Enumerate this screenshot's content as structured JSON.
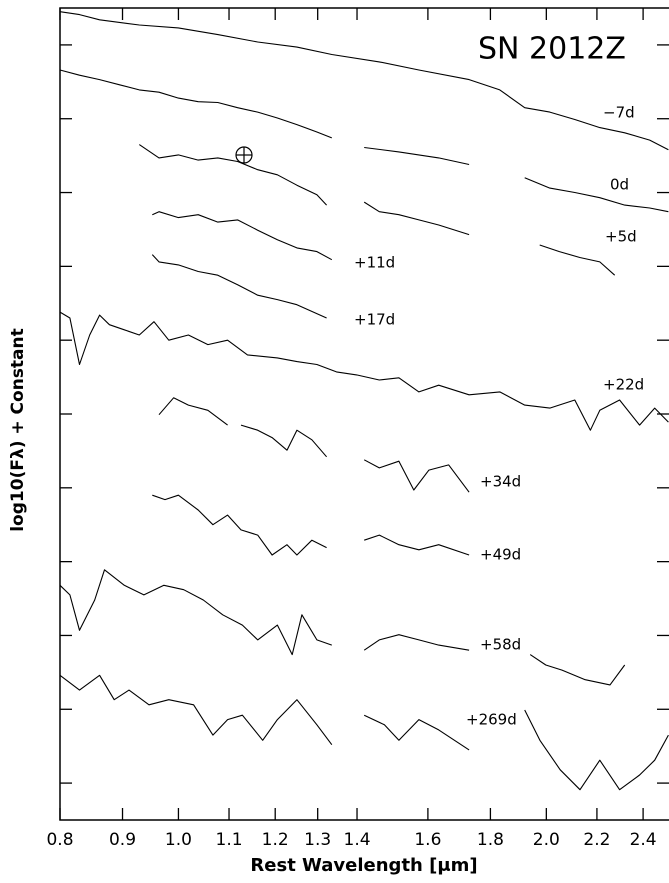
{
  "chart_data": {
    "type": "line",
    "title": "SN 2012Z",
    "xlabel": "Rest Wavelength [μm]",
    "ylabel": "log10(Fλ) + Constant",
    "xscale": "log",
    "xlim": [
      0.8,
      2.52
    ],
    "ylim": [
      0,
      11
    ],
    "xticks": [
      0.8,
      0.9,
      {
        "value": 1,
        "label": "1.0"
      },
      1.1,
      1.2,
      1.3,
      1.4,
      1.6,
      1.8,
      {
        "value": 2,
        "label": "2.0"
      },
      2.2,
      2.4
    ],
    "yticks": [
      0.5,
      1.5,
      2.5,
      3.5,
      4.5,
      5.5,
      6.5,
      7.5,
      8.5,
      9.5,
      10.5
    ],
    "series": [
      {
        "name": "−7d",
        "color": "#000000",
        "x": [
          0.8,
          0.83,
          0.862,
          0.929,
          1.0,
          1.077,
          1.161,
          1.25,
          1.335,
          1.46,
          1.573,
          1.729,
          1.832,
          1.92,
          2.013,
          2.11,
          2.212,
          2.318,
          2.43,
          2.517
        ],
        "values": [
          10.95,
          10.91,
          10.84,
          10.77,
          10.73,
          10.64,
          10.54,
          10.47,
          10.37,
          10.27,
          10.16,
          10.03,
          9.89,
          9.65,
          9.59,
          9.49,
          9.38,
          9.31,
          9.21,
          9.08
        ]
      },
      {
        "name": "0d",
        "color": "#000000",
        "x": [
          0.8,
          0.83,
          0.862,
          0.895,
          0.929,
          0.964,
          1.0,
          1.038,
          1.077,
          1.118,
          1.161,
          1.205,
          1.25,
          1.298,
          1.335,
          1.38,
          1.419,
          1.515,
          1.633,
          1.729,
          1.82,
          1.92,
          2.013,
          2.11,
          2.212,
          2.318,
          2.43,
          2.517
        ],
        "values": [
          10.16,
          10.09,
          10.03,
          9.96,
          9.89,
          9.86,
          9.78,
          9.73,
          9.72,
          9.65,
          9.59,
          9.51,
          9.42,
          9.32,
          9.24,
          null,
          9.11,
          9.05,
          8.97,
          8.88,
          null,
          8.7,
          8.56,
          8.5,
          8.43,
          8.33,
          8.29,
          8.24
        ]
      },
      {
        "name": "+5d",
        "color": "#000000",
        "x": [
          0.929,
          0.964,
          1.0,
          1.038,
          1.077,
          1.118,
          1.161,
          1.205,
          1.25,
          1.298,
          1.322,
          1.37,
          1.419,
          1.46,
          1.515,
          1.573,
          1.633,
          1.729,
          1.85,
          1.975,
          2.05,
          2.13,
          2.212,
          2.275
        ],
        "values": [
          9.15,
          8.97,
          9.01,
          8.94,
          8.97,
          8.92,
          8.81,
          8.74,
          8.6,
          8.47,
          8.33,
          null,
          8.37,
          8.24,
          8.2,
          8.13,
          8.06,
          7.93,
          null,
          7.79,
          7.7,
          7.62,
          7.56,
          7.38
        ]
      },
      {
        "name": "+11d",
        "color": "#000000",
        "x": [
          0.952,
          0.964,
          1.0,
          1.038,
          1.077,
          1.118,
          1.161,
          1.205,
          1.25,
          1.298,
          1.335
        ],
        "values": [
          8.2,
          8.24,
          8.16,
          8.2,
          8.1,
          8.13,
          7.99,
          7.86,
          7.75,
          7.7,
          7.59
        ]
      },
      {
        "name": "+17d",
        "color": "#000000",
        "x": [
          0.952,
          0.964,
          1.0,
          1.038,
          1.077,
          1.118,
          1.161,
          1.205,
          1.25,
          1.322
        ],
        "values": [
          7.66,
          7.56,
          7.52,
          7.43,
          7.38,
          7.25,
          7.11,
          7.05,
          6.98,
          6.8
        ]
      },
      {
        "name": "+22d",
        "color": "#000000",
        "x": [
          0.8,
          0.815,
          0.83,
          0.846,
          0.862,
          0.878,
          0.903,
          0.929,
          0.955,
          0.982,
          1.019,
          1.057,
          1.097,
          1.139,
          1.205,
          1.25,
          1.298,
          1.347,
          1.399,
          1.46,
          1.515,
          1.573,
          1.633,
          1.729,
          1.832,
          1.92,
          2.013,
          2.11,
          2.173,
          2.212,
          2.296,
          2.384,
          2.453,
          2.517
        ],
        "values": [
          6.88,
          6.8,
          6.17,
          6.57,
          6.84,
          6.71,
          6.64,
          6.57,
          6.75,
          6.5,
          6.57,
          6.44,
          6.5,
          6.3,
          6.26,
          6.21,
          6.17,
          6.07,
          6.03,
          5.96,
          5.99,
          5.8,
          5.89,
          5.76,
          5.8,
          5.62,
          5.58,
          5.69,
          5.28,
          5.55,
          5.69,
          5.35,
          5.58,
          5.39
        ]
      },
      {
        "name": "+34d",
        "color": "#000000",
        "x": [
          0.964,
          0.991,
          1.019,
          1.057,
          1.097,
          1.11,
          1.125,
          1.161,
          1.193,
          1.227,
          1.25,
          1.286,
          1.322,
          1.36,
          1.419,
          1.46,
          1.515,
          1.558,
          1.603,
          1.664,
          1.729
        ],
        "values": [
          5.49,
          5.72,
          5.62,
          5.55,
          5.35,
          null,
          5.35,
          5.28,
          5.18,
          5.01,
          5.28,
          5.15,
          4.92,
          null,
          4.88,
          4.77,
          4.86,
          4.47,
          4.74,
          4.81,
          4.44
        ]
      },
      {
        "name": "+49d",
        "color": "#000000",
        "x": [
          0.952,
          0.975,
          1.0,
          1.038,
          1.067,
          1.097,
          1.125,
          1.161,
          1.193,
          1.227,
          1.25,
          1.286,
          1.322,
          1.36,
          1.419,
          1.46,
          1.515,
          1.573,
          1.633,
          1.729
        ],
        "values": [
          4.4,
          4.34,
          4.4,
          4.2,
          4.0,
          4.13,
          3.93,
          3.86,
          3.59,
          3.73,
          3.59,
          3.79,
          3.69,
          null,
          3.79,
          3.86,
          3.73,
          3.66,
          3.73,
          3.59
        ]
      },
      {
        "name": "+58d",
        "color": "#000000",
        "x": [
          0.8,
          0.815,
          0.83,
          0.854,
          0.87,
          0.903,
          0.937,
          0.973,
          1.01,
          1.048,
          1.087,
          1.128,
          1.161,
          1.205,
          1.239,
          1.262,
          1.298,
          1.335,
          1.37,
          1.419,
          1.46,
          1.515,
          1.573,
          1.633,
          1.729,
          1.83,
          1.94,
          1.998,
          2.06,
          2.152,
          2.255,
          2.318
        ],
        "values": [
          3.18,
          3.05,
          2.57,
          2.98,
          3.39,
          3.18,
          3.05,
          3.18,
          3.12,
          2.98,
          2.78,
          2.64,
          2.44,
          2.64,
          2.24,
          2.78,
          2.44,
          2.37,
          null,
          2.3,
          2.44,
          2.51,
          2.44,
          2.37,
          2.3,
          null,
          2.24,
          2.1,
          2.03,
          1.9,
          1.83,
          2.1
        ]
      },
      {
        "name": "+269d",
        "color": "#000000",
        "x": [
          0.8,
          0.83,
          0.862,
          0.886,
          0.911,
          0.946,
          0.982,
          1.029,
          1.067,
          1.097,
          1.128,
          1.172,
          1.205,
          1.25,
          1.298,
          1.335,
          1.37,
          1.419,
          1.474,
          1.515,
          1.573,
          1.633,
          1.729,
          1.83,
          1.92,
          1.976,
          2.053,
          2.131,
          2.212,
          2.296,
          2.384,
          2.453,
          2.517
        ],
        "values": [
          1.96,
          1.76,
          1.96,
          1.63,
          1.76,
          1.56,
          1.63,
          1.56,
          1.15,
          1.36,
          1.42,
          1.08,
          1.36,
          1.63,
          1.29,
          1.02,
          null,
          1.42,
          1.29,
          1.08,
          1.36,
          1.22,
          0.95,
          null,
          1.49,
          1.08,
          0.68,
          0.41,
          0.81,
          0.41,
          0.61,
          0.81,
          1.15
        ]
      }
    ]
  }
}
